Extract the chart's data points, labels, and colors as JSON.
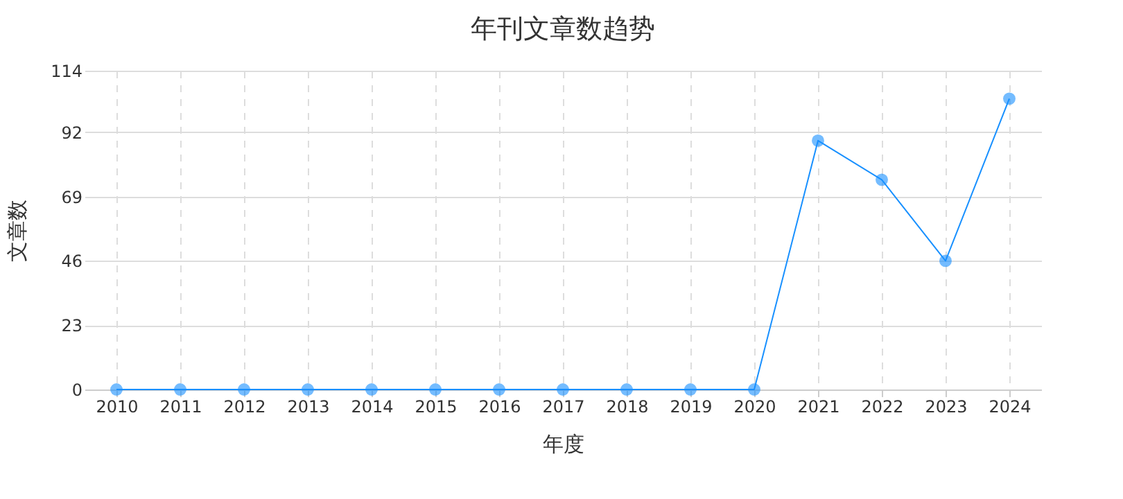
{
  "chart_data": {
    "type": "line",
    "title": "年刊文章数趋势",
    "xlabel": "年度",
    "ylabel": "文章数",
    "categories": [
      "2010",
      "2011",
      "2012",
      "2013",
      "2014",
      "2015",
      "2016",
      "2017",
      "2018",
      "2019",
      "2020",
      "2021",
      "2022",
      "2023",
      "2024"
    ],
    "series": [
      {
        "color": "#1890ff",
        "values": [
          0,
          0,
          0,
          0,
          0,
          0,
          0,
          0,
          0,
          0,
          0,
          89,
          75,
          46,
          104
        ]
      }
    ],
    "ylim": [
      0,
      114
    ],
    "yticks": [
      0,
      23,
      46,
      69,
      92,
      114
    ],
    "grid": true,
    "marker": "circle",
    "line_style": "solid"
  }
}
